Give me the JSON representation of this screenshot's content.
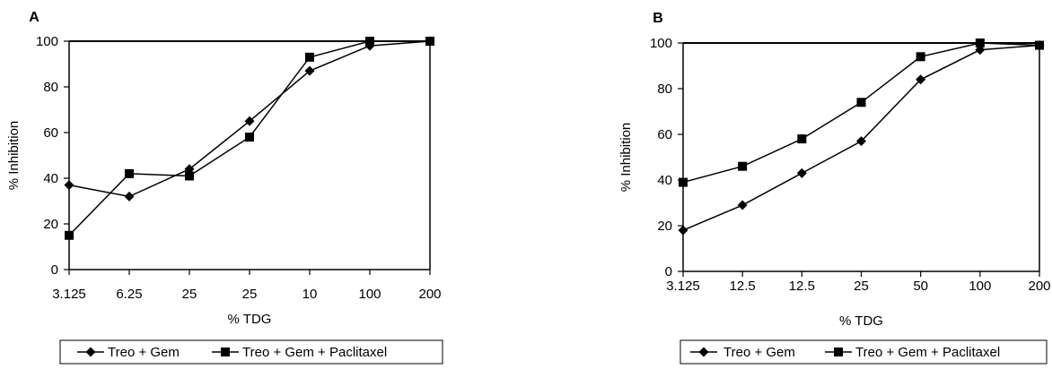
{
  "chart_data": [
    {
      "panel": "A",
      "type": "line",
      "xlabel": "% TDG",
      "ylabel": "% Inhibition",
      "x_tick_labels": [
        "3.125",
        "6.25",
        "25",
        "25",
        "10",
        "100",
        "200"
      ],
      "y_ticks": [
        0,
        20,
        40,
        60,
        80,
        100
      ],
      "ylim": [
        0,
        100
      ],
      "grid": false,
      "legend_position": "bottom",
      "series": [
        {
          "name": "Treo + Gem",
          "marker": "diamond",
          "values": [
            37,
            32,
            44,
            65,
            87,
            98,
            100
          ]
        },
        {
          "name": "Treo + Gem + Paclitaxel",
          "marker": "square",
          "values": [
            15,
            42,
            41,
            58,
            93,
            100,
            100
          ]
        }
      ]
    },
    {
      "panel": "B",
      "type": "line",
      "xlabel": "% TDG",
      "ylabel": "% Inhibition",
      "x_tick_labels": [
        "3.125",
        "12.5",
        "12.5",
        "25",
        "50",
        "100",
        "200"
      ],
      "y_ticks": [
        0,
        20,
        40,
        60,
        80,
        100
      ],
      "ylim": [
        0,
        100
      ],
      "grid": false,
      "legend_position": "bottom",
      "series": [
        {
          "name": "Treo + Gem",
          "marker": "diamond",
          "values": [
            18,
            29,
            43,
            57,
            84,
            97,
            99
          ]
        },
        {
          "name": "Treo + Gem + Paclitaxel",
          "marker": "square",
          "values": [
            39,
            46,
            58,
            74,
            94,
            100,
            99
          ]
        }
      ]
    }
  ]
}
